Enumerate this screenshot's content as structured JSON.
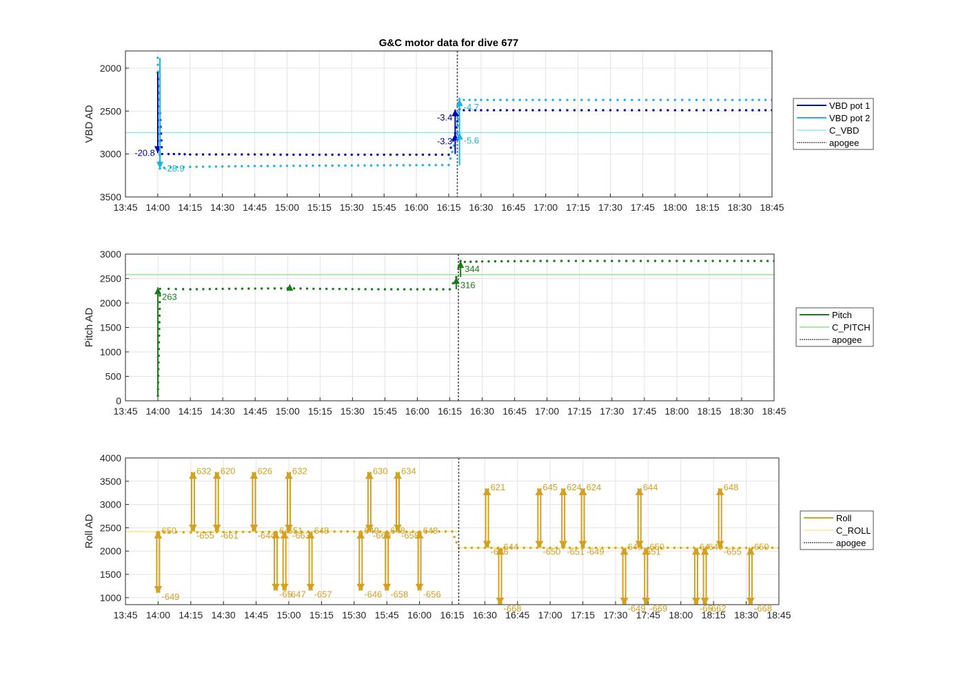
{
  "figure_title": "G&C motor data for dive 677",
  "chart_data": [
    {
      "type": "line",
      "id": "vbd",
      "ylabel": "VBD AD",
      "ylim": [
        1800,
        3500
      ],
      "y_reversed": true,
      "yticks": [
        2000,
        2500,
        3000,
        3500
      ],
      "xlim": [
        "13:45",
        "18:45"
      ],
      "xticks": [
        "13:45",
        "14:00",
        "14:15",
        "14:30",
        "14:45",
        "15:00",
        "15:15",
        "15:30",
        "15:45",
        "16:00",
        "16:15",
        "16:30",
        "16:45",
        "17:00",
        "17:15",
        "17:30",
        "17:45",
        "18:00",
        "18:15",
        "18:30",
        "18:45"
      ],
      "grid": true,
      "apogee": "16:19",
      "legend": [
        "VBD pot 1",
        "VBD pot 2",
        "C_VBD",
        "apogee"
      ],
      "colors": {
        "pot1": "#0000b4",
        "pot2": "#19b4e6",
        "c_line": "#7fe0e6",
        "apogee": "#555555"
      },
      "c_value": 2750,
      "series": [
        {
          "name": "VBD pot 1",
          "key": "pot1",
          "x": [
            "14:00",
            "14:02",
            "14:05",
            "14:10",
            "14:15",
            "14:30",
            "14:45",
            "15:00",
            "15:15",
            "15:30",
            "15:45",
            "16:00",
            "16:15",
            "16:18",
            "16:20",
            "16:22",
            "16:30",
            "16:45",
            "17:00",
            "17:30",
            "18:00",
            "18:30",
            "18:45"
          ],
          "y": [
            2050,
            3000,
            3000,
            3000,
            3005,
            3005,
            3005,
            3008,
            3008,
            3008,
            3008,
            3008,
            3008,
            2760,
            2480,
            2490,
            2490,
            2490,
            2490,
            2490,
            2490,
            2490,
            2490
          ]
        },
        {
          "name": "VBD pot 2",
          "key": "pot2",
          "x": [
            "14:00",
            "14:01",
            "14:03",
            "14:06",
            "14:15",
            "14:30",
            "14:45",
            "15:00",
            "15:15",
            "15:30",
            "15:45",
            "16:00",
            "16:15",
            "16:19",
            "16:20",
            "16:22",
            "16:30",
            "16:45",
            "17:00",
            "17:30",
            "18:00",
            "18:30",
            "18:45"
          ],
          "y": [
            1880,
            3170,
            3160,
            3155,
            3150,
            3145,
            3140,
            3138,
            3136,
            3134,
            3132,
            3130,
            3128,
            2750,
            2360,
            2370,
            2370,
            2370,
            2370,
            2370,
            2370,
            2370,
            2370
          ]
        }
      ],
      "annotations": [
        {
          "text": "-20.8",
          "x": "14:00",
          "y": 2990,
          "key": "pot1",
          "dir": "down",
          "from": 2050,
          "to": 2990,
          "side": "left"
        },
        {
          "text": "-28.9",
          "x": "14:01",
          "y": 3170,
          "key": "pot2",
          "dir": "down",
          "from": 1880,
          "to": 3170,
          "side": "right"
        },
        {
          "text": "-3.3",
          "x": "16:18",
          "y": 2760,
          "key": "pot1",
          "dir": "up",
          "from": 3000,
          "to": 2760,
          "side": "left"
        },
        {
          "text": "-3.4",
          "x": "16:18",
          "y": 2480,
          "key": "pot1",
          "dir": "up",
          "from": 2760,
          "to": 2480,
          "side": "left"
        },
        {
          "text": "-5.6",
          "x": "16:20",
          "y": 2750,
          "key": "pot2",
          "dir": "up",
          "from": 3130,
          "to": 2750,
          "side": "right"
        },
        {
          "text": "-4.7",
          "x": "16:20",
          "y": 2360,
          "key": "pot2",
          "dir": "up",
          "from": 2750,
          "to": 2360,
          "side": "right"
        }
      ]
    },
    {
      "type": "line",
      "id": "pitch",
      "ylabel": "Pitch AD",
      "ylim": [
        0,
        3000
      ],
      "yticks": [
        0,
        500,
        1000,
        1500,
        2000,
        2500,
        3000
      ],
      "xlim": [
        "13:45",
        "18:45"
      ],
      "xticks": [
        "13:45",
        "14:00",
        "14:15",
        "14:30",
        "14:45",
        "15:00",
        "15:15",
        "15:30",
        "15:45",
        "16:00",
        "16:15",
        "16:30",
        "16:45",
        "17:00",
        "17:15",
        "17:30",
        "17:45",
        "18:00",
        "18:15",
        "18:30",
        "18:45"
      ],
      "grid": true,
      "apogee": "16:19",
      "legend": [
        "Pitch",
        "C_PITCH",
        "apogee"
      ],
      "colors": {
        "pitch": "#1a7a1a",
        "c_line": "#6ee06e",
        "apogee": "#555555"
      },
      "c_value": 2580,
      "series": [
        {
          "name": "Pitch",
          "key": "pitch",
          "x": [
            "14:00",
            "14:01",
            "14:05",
            "14:15",
            "14:30",
            "14:45",
            "15:00",
            "15:15",
            "15:30",
            "15:45",
            "16:00",
            "16:15",
            "16:18",
            "16:20",
            "16:22",
            "16:30",
            "16:45",
            "17:00",
            "17:30",
            "18:00",
            "18:30",
            "18:45"
          ],
          "y": [
            100,
            2290,
            2290,
            2280,
            2290,
            2295,
            2300,
            2290,
            2285,
            2280,
            2280,
            2280,
            2530,
            2860,
            2840,
            2850,
            2855,
            2860,
            2860,
            2860,
            2860,
            2860
          ]
        }
      ],
      "annotations": [
        {
          "text": "263",
          "x": "14:00",
          "y": 2290,
          "key": "pitch",
          "dir": "up",
          "from": 100,
          "to": 2320,
          "side": "right"
        },
        {
          "text": "316",
          "x": "16:18",
          "y": 2530,
          "key": "pitch",
          "dir": "up",
          "from": 2280,
          "to": 2530,
          "side": "right"
        },
        {
          "text": "344",
          "x": "16:20",
          "y": 2860,
          "key": "pitch",
          "dir": "up",
          "from": 2530,
          "to": 2860,
          "side": "right"
        }
      ],
      "markers": [
        {
          "x": "15:01",
          "y": 2320,
          "key": "pitch"
        }
      ]
    },
    {
      "type": "line",
      "id": "roll",
      "ylabel": "Roll AD",
      "ylim": [
        850,
        4000
      ],
      "yticks": [
        1000,
        1500,
        2000,
        2500,
        3000,
        3500,
        4000
      ],
      "xlim": [
        "13:45",
        "18:45"
      ],
      "xticks": [
        "13:45",
        "14:00",
        "14:15",
        "14:30",
        "14:45",
        "15:00",
        "15:15",
        "15:30",
        "15:45",
        "16:00",
        "16:15",
        "16:30",
        "16:45",
        "17:00",
        "17:15",
        "17:30",
        "17:45",
        "18:00",
        "18:15",
        "18:30",
        "18:45"
      ],
      "grid": true,
      "apogee": "16:18",
      "legend": [
        "Roll",
        "C_ROLL",
        "apogee"
      ],
      "colors": {
        "roll": "#d4a020",
        "c_line": "#f5e87a",
        "apogee": "#555555"
      },
      "c_segments": [
        {
          "from": "13:45",
          "to": "16:18",
          "y": 2420
        },
        {
          "from": "16:18",
          "to": "18:45",
          "y": 2070
        }
      ],
      "series": [
        {
          "name": "Roll",
          "key": "roll",
          "x": [
            "14:00",
            "14:05",
            "14:15",
            "14:30",
            "14:45",
            "15:00",
            "15:15",
            "15:30",
            "15:45",
            "16:00",
            "16:15",
            "16:18",
            "16:30",
            "16:45",
            "17:00",
            "17:15",
            "17:30",
            "17:45",
            "18:00",
            "18:15",
            "18:30",
            "18:45"
          ],
          "y": [
            2410,
            2410,
            2400,
            2410,
            2410,
            2415,
            2420,
            2420,
            2420,
            2420,
            2420,
            2070,
            2070,
            2070,
            2070,
            2070,
            2070,
            2070,
            2070,
            2070,
            2070,
            2070
          ]
        }
      ],
      "arrows": [
        {
          "x": "14:00",
          "from": 2420,
          "to": 1100,
          "label_from": "650",
          "label_to": "-649"
        },
        {
          "x": "14:16",
          "from": 2420,
          "to": 3700,
          "label_from": "-655",
          "label_to": "632"
        },
        {
          "x": "14:27",
          "from": 2420,
          "to": 3700,
          "label_from": "-661",
          "label_to": "620"
        },
        {
          "x": "14:44",
          "from": 2420,
          "to": 3700,
          "label_from": "-644",
          "label_to": "626"
        },
        {
          "x": "14:54",
          "from": 2420,
          "to": 1150,
          "label_from": "64",
          "label_to": "-65"
        },
        {
          "x": "14:58",
          "from": 2420,
          "to": 1150,
          "label_from": "651",
          "label_to": "-647"
        },
        {
          "x": "15:00",
          "from": 2420,
          "to": 3700,
          "label_from": "-663",
          "label_to": "632"
        },
        {
          "x": "15:10",
          "from": 2420,
          "to": 1150,
          "label_from": "648",
          "label_to": "-657"
        },
        {
          "x": "15:33",
          "from": 2420,
          "to": 1150,
          "label_from": "649",
          "label_to": "-646"
        },
        {
          "x": "15:37",
          "from": 2420,
          "to": 3700,
          "label_from": "-660",
          "label_to": "630"
        },
        {
          "x": "15:45",
          "from": 2420,
          "to": 1150,
          "label_from": "648",
          "label_to": "-658"
        },
        {
          "x": "15:50",
          "from": 2420,
          "to": 3700,
          "label_from": "-658",
          "label_to": "634"
        },
        {
          "x": "16:00",
          "from": 2420,
          "to": 1150,
          "label_from": "648",
          "label_to": "-656"
        },
        {
          "x": "16:31",
          "from": 2070,
          "to": 3350,
          "label_from": "-636",
          "label_to": "621"
        },
        {
          "x": "16:37",
          "from": 2070,
          "to": 850,
          "label_from": "644",
          "label_to": "-668"
        },
        {
          "x": "16:55",
          "from": 2070,
          "to": 3350,
          "label_from": "-650",
          "label_to": "645"
        },
        {
          "x": "17:06",
          "from": 2070,
          "to": 3350,
          "label_from": "-651",
          "label_to": "624"
        },
        {
          "x": "17:15",
          "from": 2070,
          "to": 3350,
          "label_from": "-649",
          "label_to": "624"
        },
        {
          "x": "17:34",
          "from": 2070,
          "to": 850,
          "label_from": "649",
          "label_to": "-649"
        },
        {
          "x": "17:41",
          "from": 2070,
          "to": 3350,
          "label_from": "-651",
          "label_to": "644"
        },
        {
          "x": "17:44",
          "from": 2070,
          "to": 850,
          "label_from": "650",
          "label_to": "-669"
        },
        {
          "x": "18:07",
          "from": 2070,
          "to": 850,
          "label_from": "64",
          "label_to": "-65"
        },
        {
          "x": "18:11",
          "from": 2070,
          "to": 850,
          "label_from": "649",
          "label_to": "-662"
        },
        {
          "x": "18:18",
          "from": 2070,
          "to": 3350,
          "label_from": "-655",
          "label_to": "648"
        },
        {
          "x": "18:32",
          "from": 2070,
          "to": 850,
          "label_from": "650",
          "label_to": "-668"
        }
      ]
    }
  ]
}
